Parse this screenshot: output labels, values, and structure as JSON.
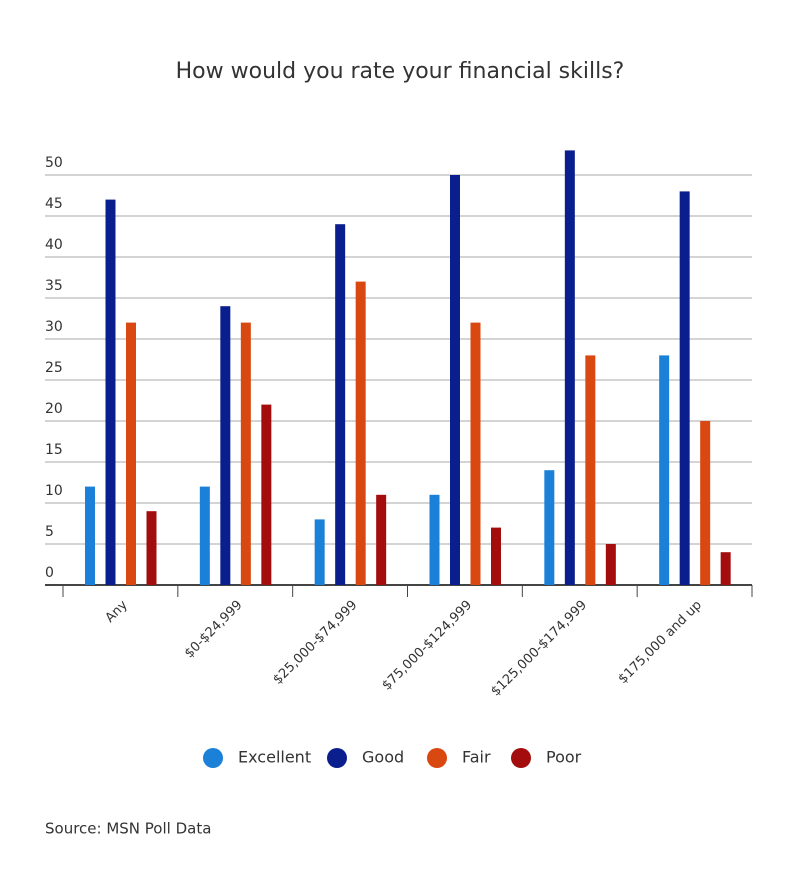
{
  "chart_data": {
    "type": "bar",
    "title": "How would you rate your financial skills?",
    "categories": [
      "Any",
      "$0-$24,999",
      "$25,000-$74,999",
      "$75,000-$124,999",
      "$125,000-$174,999",
      "$175,000 and up"
    ],
    "series": [
      {
        "name": "Excellent",
        "color": "#1a80d8",
        "values": [
          12,
          12,
          8,
          11,
          14,
          28
        ]
      },
      {
        "name": "Good",
        "color": "#0b1e8e",
        "values": [
          47,
          34,
          44,
          50,
          53,
          48
        ]
      },
      {
        "name": "Fair",
        "color": "#da4811",
        "values": [
          32,
          32,
          37,
          32,
          28,
          20
        ]
      },
      {
        "name": "Poor",
        "color": "#a30d0d",
        "values": [
          9,
          22,
          11,
          7,
          5,
          4
        ]
      }
    ],
    "ylim": [
      0,
      55
    ],
    "yticks": [
      0,
      5,
      10,
      15,
      20,
      25,
      30,
      35,
      40,
      45,
      50
    ],
    "grid": true,
    "legend": "bottom",
    "source": "Source: MSN Poll Data"
  }
}
